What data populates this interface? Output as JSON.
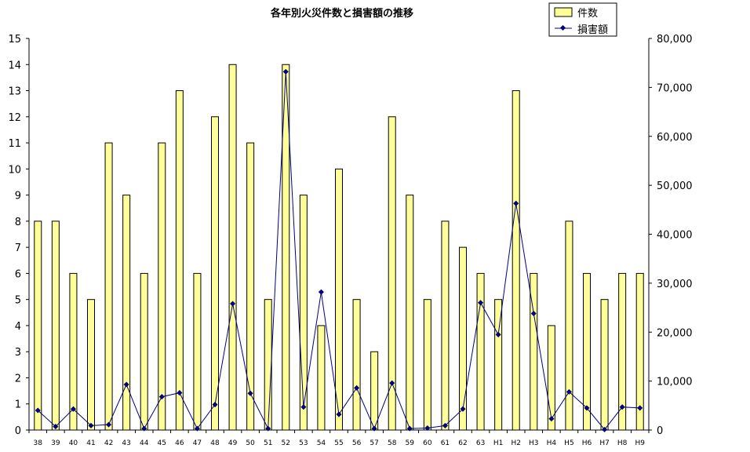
{
  "chart_data": {
    "type": "bar",
    "title": "各年別火災件数と損害額の推移",
    "categories": [
      "38",
      "39",
      "40",
      "41",
      "42",
      "43",
      "44",
      "45",
      "46",
      "47",
      "48",
      "49",
      "50",
      "51",
      "52",
      "53",
      "54",
      "55",
      "56",
      "57",
      "58",
      "59",
      "60",
      "61",
      "62",
      "63",
      "H1",
      "H2",
      "H3",
      "H4",
      "H5",
      "H6",
      "H7",
      "H8",
      "H9"
    ],
    "series": [
      {
        "name": "件数",
        "type": "bar",
        "axis": "left",
        "color": "#ffff99",
        "values": [
          8,
          8,
          6,
          5,
          11,
          9,
          6,
          11,
          13,
          6,
          12,
          14,
          11,
          5,
          14,
          9,
          4,
          10,
          5,
          3,
          12,
          9,
          5,
          8,
          7,
          6,
          5,
          13,
          6,
          4,
          8,
          6,
          5,
          6,
          6
        ]
      },
      {
        "name": "損害額",
        "type": "line",
        "axis": "right",
        "color": "#000080",
        "values": [
          4000,
          700,
          4300,
          900,
          1100,
          9300,
          300,
          6800,
          7600,
          300,
          5200,
          25800,
          7500,
          300,
          73200,
          4700,
          28200,
          3200,
          8600,
          300,
          9600,
          300,
          400,
          900,
          4300,
          26000,
          19500,
          46300,
          23800,
          2300,
          7800,
          4500,
          100,
          4700,
          4500
        ]
      }
    ],
    "y_left": {
      "min": 0,
      "max": 15,
      "step": 1,
      "ticks": [
        "0",
        "1",
        "2",
        "3",
        "4",
        "5",
        "6",
        "7",
        "8",
        "9",
        "10",
        "11",
        "12",
        "13",
        "14",
        "15"
      ]
    },
    "y_right": {
      "min": 0,
      "max": 80000,
      "step": 10000,
      "ticks": [
        "0",
        "10,000",
        "20,000",
        "30,000",
        "40,000",
        "50,000",
        "60,000",
        "70,000",
        "80,000"
      ]
    },
    "grid": false,
    "legend_position": "top-right"
  },
  "colors": {
    "bar_fill": "#ffff99",
    "bar_stroke": "#000000",
    "line": "#000080",
    "axis": "#000000"
  }
}
